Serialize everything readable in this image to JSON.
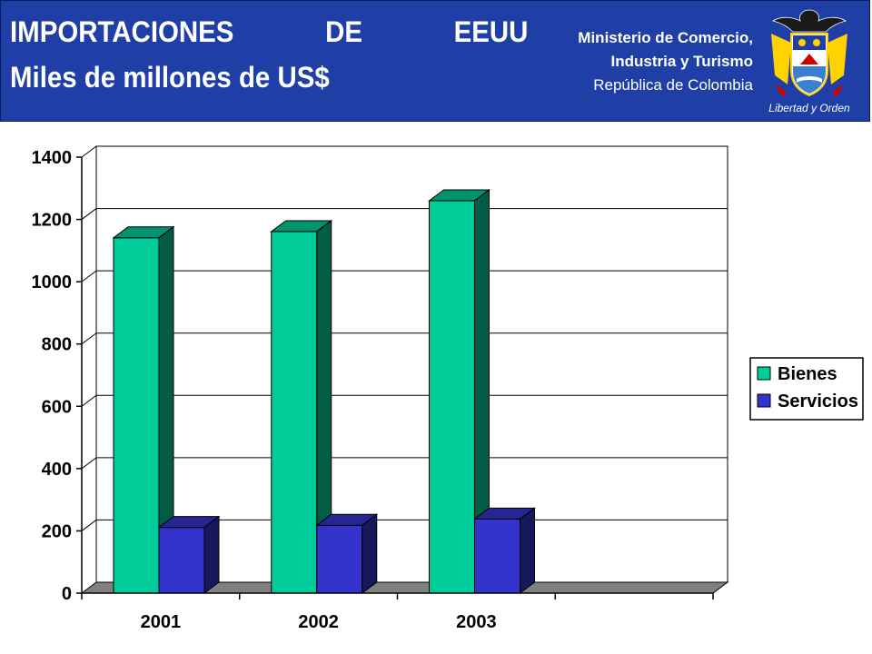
{
  "header": {
    "title_words": [
      "IMPORTACIONES",
      "DE",
      "EEUU"
    ],
    "subtitle": "Miles de millones de US$",
    "ministry_line1": "Ministerio de Comercio,",
    "ministry_line2": "Industria y Turismo",
    "ministry_line3": "República de Colombia",
    "emblem_motto": "Libertad y Orden"
  },
  "colors": {
    "header_bg": "#1f3fa6",
    "bienes": "#00cc99",
    "servicios": "#3333cc",
    "floor": "#808080"
  },
  "chart_data": {
    "type": "bar",
    "categories": [
      "2001",
      "2002",
      "2003",
      ""
    ],
    "series": [
      {
        "name": "Bienes",
        "values": [
          1141,
          1161,
          1260,
          null
        ]
      },
      {
        "name": "Servicios",
        "values": [
          211,
          218,
          238,
          null
        ]
      }
    ],
    "yticks": [
      "0",
      "200",
      "400",
      "600",
      "800",
      "1000",
      "1200",
      "1400"
    ],
    "ylim": [
      0,
      1400
    ],
    "grid": true,
    "legend_position": "right",
    "title": "",
    "xlabel": "",
    "ylabel": ""
  }
}
